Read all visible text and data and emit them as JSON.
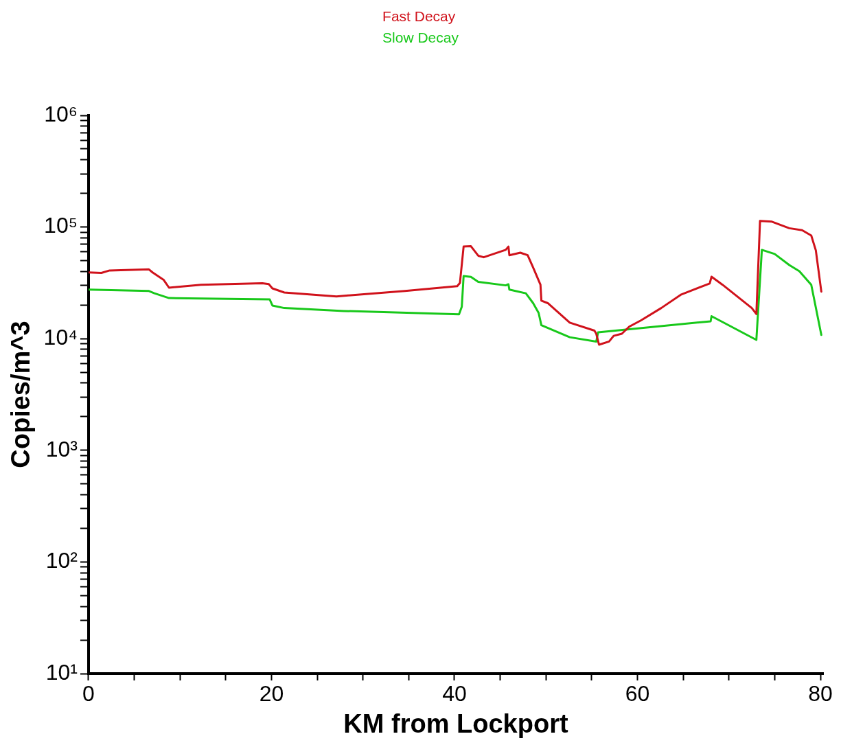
{
  "chart_data": {
    "type": "line",
    "xlabel": "KM from Lockport",
    "ylabel": "Copies/m^3",
    "log": "y",
    "legend": "top",
    "grid": false,
    "marker": "none",
    "line_style": "solid",
    "xlim": [
      0,
      80.3
    ],
    "xticks": [
      0,
      {
        "value": 5,
        "label": null
      },
      {
        "value": 10,
        "label": null
      },
      {
        "value": 15,
        "label": null
      },
      20,
      {
        "value": 25,
        "label": null
      },
      {
        "value": 30,
        "label": null
      },
      {
        "value": 35,
        "label": null
      },
      40,
      {
        "value": 45,
        "label": null
      },
      {
        "value": 50,
        "label": null
      },
      {
        "value": 55,
        "label": null
      },
      60,
      {
        "value": 65,
        "label": null
      },
      {
        "value": 70,
        "label": null
      },
      {
        "value": 75,
        "label": null
      },
      80
    ],
    "ylim": [
      10,
      1000000
    ],
    "yticks": [
      {
        "value": 10,
        "label": "10¹"
      },
      {
        "value": 20,
        "label": null
      },
      {
        "value": 30,
        "label": null
      },
      {
        "value": 40,
        "label": null
      },
      {
        "value": 50,
        "label": null
      },
      {
        "value": 60,
        "label": null
      },
      {
        "value": 70,
        "label": null
      },
      {
        "value": 80,
        "label": null
      },
      {
        "value": 90,
        "label": null
      },
      {
        "value": 100,
        "label": "10²"
      },
      {
        "value": 200,
        "label": null
      },
      {
        "value": 300,
        "label": null
      },
      {
        "value": 400,
        "label": null
      },
      {
        "value": 500,
        "label": null
      },
      {
        "value": 600,
        "label": null
      },
      {
        "value": 700,
        "label": null
      },
      {
        "value": 800,
        "label": null
      },
      {
        "value": 900,
        "label": null
      },
      {
        "value": 1000,
        "label": "10³"
      },
      {
        "value": 2000,
        "label": null
      },
      {
        "value": 3000,
        "label": null
      },
      {
        "value": 4000,
        "label": null
      },
      {
        "value": 5000,
        "label": null
      },
      {
        "value": 6000,
        "label": null
      },
      {
        "value": 7000,
        "label": null
      },
      {
        "value": 8000,
        "label": null
      },
      {
        "value": 9000,
        "label": null
      },
      {
        "value": 10000,
        "label": "10⁴"
      },
      {
        "value": 20000,
        "label": null
      },
      {
        "value": 30000,
        "label": null
      },
      {
        "value": 40000,
        "label": null
      },
      {
        "value": 50000,
        "label": null
      },
      {
        "value": 60000,
        "label": null
      },
      {
        "value": 70000,
        "label": null
      },
      {
        "value": 80000,
        "label": null
      },
      {
        "value": 90000,
        "label": null
      },
      {
        "value": 100000,
        "label": "10⁵"
      },
      {
        "value": 200000,
        "label": null
      },
      {
        "value": 300000,
        "label": null
      },
      {
        "value": 400000,
        "label": null
      },
      {
        "value": 500000,
        "label": null
      },
      {
        "value": 600000,
        "label": null
      },
      {
        "value": 700000,
        "label": null
      },
      {
        "value": 800000,
        "label": null
      },
      {
        "value": 900000,
        "label": null
      },
      {
        "value": 1000000,
        "label": "10⁶"
      }
    ],
    "series": [
      {
        "name": "Fast Decay",
        "color": "#d0121b",
        "x": [
          0,
          1.4,
          2.3,
          6.6,
          7.0,
          8.2,
          8.8,
          12.3,
          19.0,
          19.7,
          20.1,
          21.4,
          27.1,
          34.6,
          40.3,
          40.6,
          41.0,
          41.8,
          42.6,
          43.2,
          45.6,
          45.9,
          46.0,
          47.2,
          48.0,
          48.6,
          49.4,
          49.5,
          50.2,
          52.6,
          55.3,
          55.5,
          55.8,
          56.9,
          57.4,
          58.3,
          59.1,
          60.4,
          62.6,
          64.8,
          67.9,
          68.1,
          69.3,
          72.5,
          73.0,
          73.4,
          74.7,
          76.6,
          78.0,
          79.0,
          79.5,
          80.1
        ],
        "values": [
          39200,
          38800,
          40800,
          41700,
          39200,
          33700,
          28600,
          30400,
          31400,
          30800,
          28200,
          25900,
          23900,
          26700,
          29500,
          31600,
          66800,
          67300,
          55300,
          53600,
          62400,
          66800,
          55900,
          58900,
          55900,
          43400,
          30400,
          21900,
          20800,
          13900,
          11800,
          11070,
          8830,
          9420,
          10600,
          11070,
          12800,
          14600,
          18800,
          24900,
          31200,
          35900,
          30400,
          18800,
          16600,
          113500,
          111700,
          97500,
          93600,
          83900,
          61800,
          26400
        ]
      },
      {
        "name": "Slow Decay",
        "color": "#18c81a",
        "x": [
          0,
          6.6,
          7.2,
          8.8,
          19.8,
          20.1,
          21.4,
          27.9,
          40.5,
          40.8,
          41.0,
          41.8,
          42.6,
          45.6,
          45.9,
          46.0,
          47.8,
          48.6,
          49.2,
          49.5,
          52.6,
          55.5,
          55.7,
          68.0,
          68.1,
          73.0,
          73.6,
          75.0,
          76.6,
          77.7,
          79.0,
          80.1
        ],
        "values": [
          27500,
          26700,
          25500,
          23100,
          22500,
          19800,
          18800,
          17700,
          16500,
          19300,
          36400,
          35800,
          32300,
          30000,
          30700,
          27500,
          25500,
          20800,
          17000,
          13200,
          10300,
          9420,
          11400,
          14300,
          15900,
          9750,
          62400,
          57300,
          45600,
          40200,
          30400,
          10800
        ]
      }
    ]
  }
}
